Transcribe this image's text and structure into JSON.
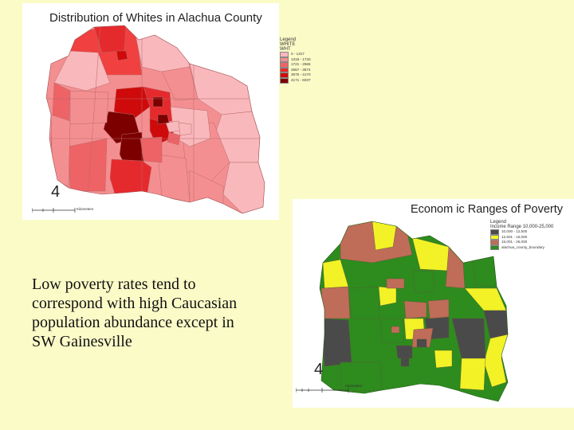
{
  "map1": {
    "title": "Distribution of Whites in Alachua County",
    "north_label": "4",
    "legend": {
      "heading": "Legend",
      "sub1": "WHITE",
      "sub2": "WHT",
      "classes": [
        {
          "label": "0 - 1317",
          "color": "#f9b8bc"
        },
        {
          "label": "1318 - 1720",
          "color": "#f48f91"
        },
        {
          "label": "1721 - 2566",
          "color": "#ee6366"
        },
        {
          "label": "2567 - 3574",
          "color": "#e52a2d"
        },
        {
          "label": "3575 - 4170",
          "color": "#cf0a0a"
        },
        {
          "label": "4171 - 6037",
          "color": "#7c0000"
        }
      ]
    },
    "scale_label": "Kilometers"
  },
  "map2": {
    "title": "Econom ic Ranges of Poverty",
    "north_label": "4",
    "legend": {
      "heading": "Legend",
      "sub1": "Income Range 10,000-25,000",
      "classes": [
        {
          "label": "10,000 - 12,500",
          "color": "#4a4a4a"
        },
        {
          "label": "12,501 - 15,000",
          "color": "#f2f226"
        },
        {
          "label": "15,001 - 25,000",
          "color": "#bf6c58"
        },
        {
          "label": "alachua_county_boundary",
          "color": "#2e8b1e"
        }
      ]
    },
    "scale_label": "Kilometers"
  },
  "caption": [
    "Low poverty rates tend to",
    " correspond with high Caucasian",
    " population abundance except in",
    "SW Gainesville"
  ]
}
